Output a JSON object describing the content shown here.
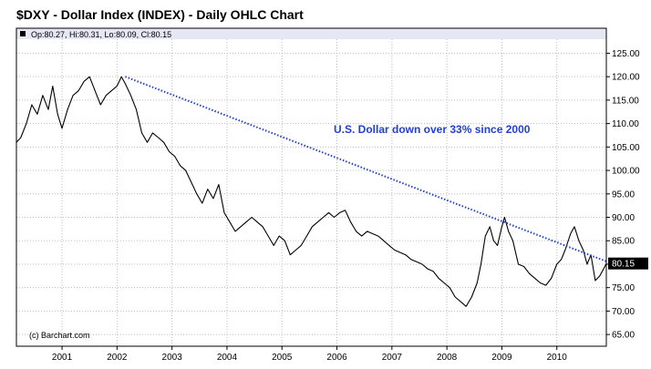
{
  "colors": {
    "price_line": "#000000",
    "trendline": "#1f3fd6",
    "annotation": "#1f3fd6",
    "info_bar": "#e6e6f5",
    "gridline": "#bdbdbd",
    "last_price_box": "#000000"
  },
  "chart_data": {
    "type": "line",
    "title": "$DXY - Dollar Index (INDEX) - Daily OHLC Chart",
    "ohlc_text": "Op:80.27, Hi:80.31, Lo:80.09, Cl:80.15",
    "last_price_label": "80.15",
    "annotation": "U.S. Dollar down over 33% since 2000",
    "watermark": "(c) Barchart.com",
    "xlabel": "",
    "ylabel": "",
    "x_tick_labels": [
      "2001",
      "2002",
      "2003",
      "2004",
      "2005",
      "2006",
      "2007",
      "2008",
      "2009",
      "2010"
    ],
    "x_tick_values": [
      2001,
      2002,
      2003,
      2004,
      2005,
      2006,
      2007,
      2008,
      2009,
      2010
    ],
    "xlim": [
      2000.17,
      2010.9
    ],
    "y_tick_labels": [
      "65.00",
      "70.00",
      "75.00",
      "80.00",
      "85.00",
      "90.00",
      "95.00",
      "100.00",
      "105.00",
      "110.00",
      "115.00",
      "120.00",
      "125.00"
    ],
    "y_tick_values": [
      65,
      70,
      75,
      80,
      85,
      90,
      95,
      100,
      105,
      110,
      115,
      120,
      125
    ],
    "ylim": [
      62.5,
      128
    ],
    "grid": true,
    "last_value": 80.15,
    "series": [
      {
        "x": [
          2000.17,
          2000.25,
          2000.35,
          2000.45,
          2000.55,
          2000.65,
          2000.75,
          2000.83,
          2000.92,
          2001.0,
          2001.1,
          2001.2,
          2001.3,
          2001.4,
          2001.5,
          2001.6,
          2001.7,
          2001.8,
          2001.9,
          2002.0,
          2002.08,
          2002.15,
          2002.25,
          2002.35,
          2002.45,
          2002.55,
          2002.65,
          2002.75,
          2002.85,
          2002.95,
          2003.05,
          2003.15,
          2003.25,
          2003.35,
          2003.45,
          2003.55,
          2003.65,
          2003.75,
          2003.85,
          2003.95,
          2004.05,
          2004.15,
          2004.25,
          2004.35,
          2004.45,
          2004.55,
          2004.65,
          2004.75,
          2004.85,
          2004.95,
          2005.05,
          2005.15,
          2005.25,
          2005.35,
          2005.45,
          2005.55,
          2005.65,
          2005.75,
          2005.85,
          2005.95,
          2006.05,
          2006.15,
          2006.25,
          2006.35,
          2006.45,
          2006.55,
          2006.65,
          2006.75,
          2006.85,
          2006.95,
          2007.05,
          2007.15,
          2007.25,
          2007.35,
          2007.45,
          2007.55,
          2007.65,
          2007.75,
          2007.85,
          2007.95,
          2008.05,
          2008.15,
          2008.25,
          2008.35,
          2008.45,
          2008.55,
          2008.62,
          2008.7,
          2008.78,
          2008.85,
          2008.92,
          2009.0,
          2009.05,
          2009.12,
          2009.2,
          2009.3,
          2009.4,
          2009.5,
          2009.6,
          2009.7,
          2009.8,
          2009.9,
          2010.0,
          2010.08,
          2010.15,
          2010.25,
          2010.32,
          2010.4,
          2010.48,
          2010.55,
          2010.62,
          2010.7,
          2010.78,
          2010.85,
          2010.9
        ],
        "values": [
          106.0,
          107.0,
          110.0,
          114.0,
          112.0,
          116.0,
          113.0,
          118.0,
          112.0,
          109.0,
          113.0,
          116.0,
          117.0,
          119.0,
          120.0,
          117.0,
          114.0,
          116.0,
          117.0,
          118.0,
          120.0,
          118.5,
          116.0,
          113.0,
          108.0,
          106.0,
          108.0,
          107.0,
          106.0,
          104.0,
          103.0,
          101.0,
          100.0,
          97.5,
          95.0,
          93.0,
          96.0,
          94.0,
          97.0,
          91.0,
          89.0,
          87.0,
          88.0,
          89.0,
          90.0,
          89.0,
          88.0,
          86.0,
          84.0,
          86.0,
          85.0,
          82.0,
          83.0,
          84.0,
          86.0,
          88.0,
          89.0,
          90.0,
          91.0,
          90.0,
          91.0,
          91.5,
          89.0,
          87.0,
          86.0,
          87.0,
          86.5,
          86.0,
          85.0,
          84.0,
          83.0,
          82.5,
          82.0,
          81.0,
          80.5,
          80.0,
          79.0,
          78.5,
          77.0,
          76.0,
          75.0,
          73.0,
          72.0,
          71.0,
          73.0,
          76.0,
          80.0,
          86.0,
          88.0,
          85.0,
          84.0,
          88.0,
          90.0,
          87.0,
          85.0,
          80.0,
          79.5,
          78.0,
          77.0,
          76.0,
          75.5,
          77.0,
          80.0,
          81.0,
          83.0,
          86.5,
          88.0,
          85.0,
          83.0,
          80.0,
          82.0,
          76.5,
          77.5,
          79.0,
          80.15
        ]
      },
      {
        "x": [
          2002.15,
          2010.9
        ],
        "values": [
          120.0,
          80.6
        ]
      }
    ]
  }
}
